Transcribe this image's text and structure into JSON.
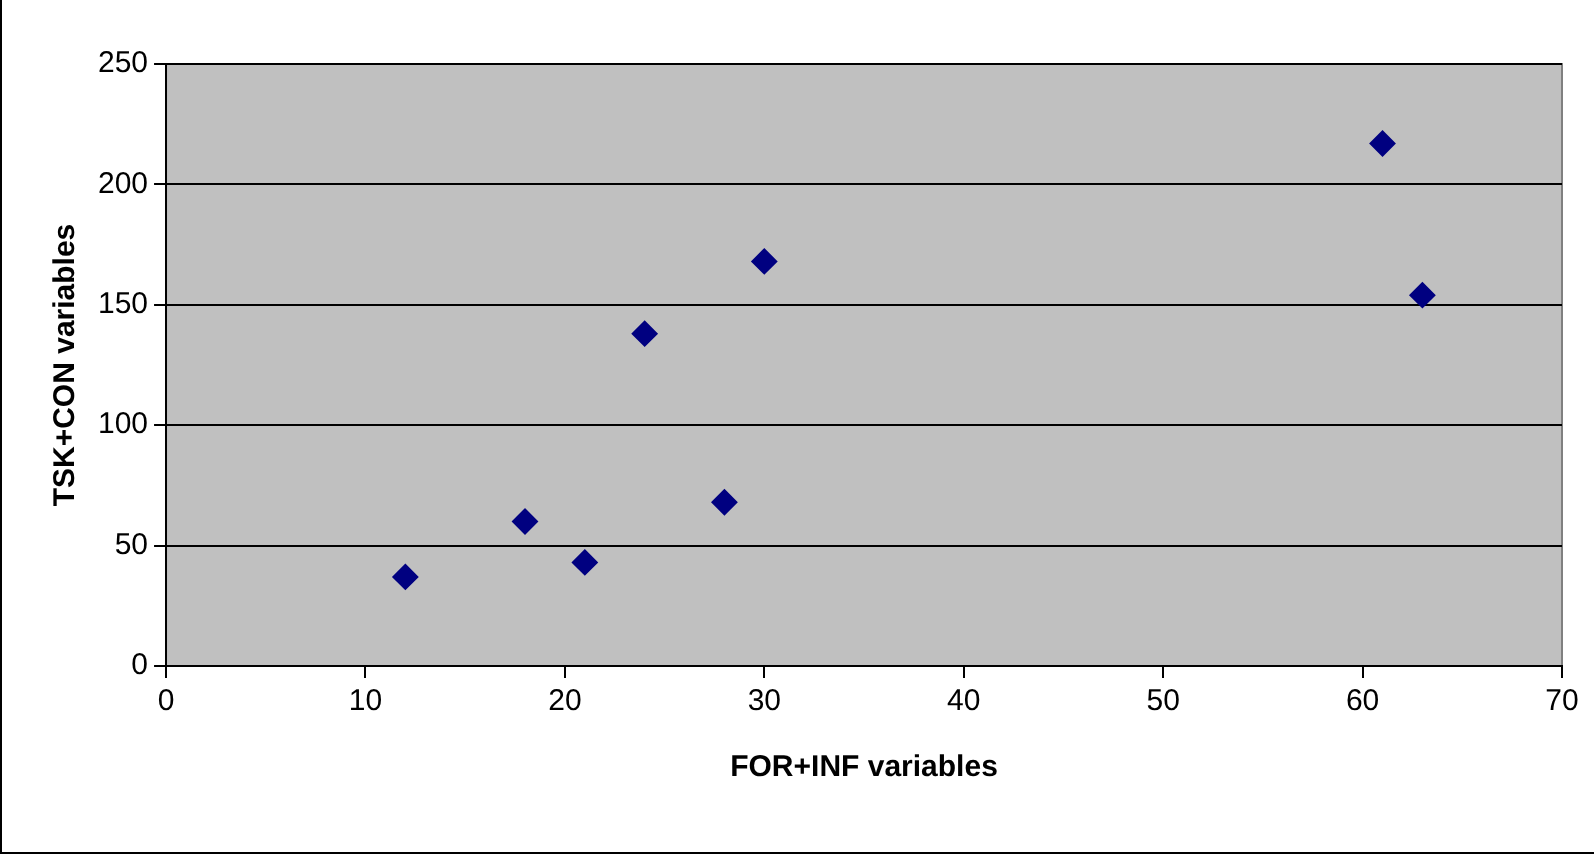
{
  "chart_data": {
    "type": "scatter",
    "xlabel": "FOR+INF variables",
    "ylabel": "TSK+CON variables",
    "x": [
      12,
      18,
      21,
      24,
      28,
      30,
      61,
      63
    ],
    "series": [
      {
        "color": "#000080",
        "values": [
          37,
          60,
          43,
          138,
          68,
          168,
          217,
          154
        ]
      }
    ],
    "xlim": [
      0,
      70
    ],
    "xticks": [
      0,
      10,
      20,
      30,
      40,
      50,
      60,
      70
    ],
    "ylim": [
      0,
      250
    ],
    "yticks": [
      0,
      50,
      100,
      150,
      200,
      250
    ],
    "grid": "y",
    "legend": false,
    "marker": "diamond"
  }
}
